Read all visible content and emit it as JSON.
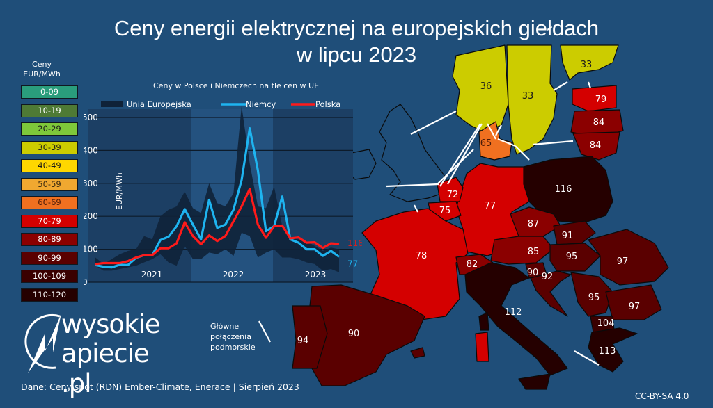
{
  "header": {
    "title_line1": "Ceny energii elektrycznej na europejskich giełdach",
    "title_line2": "w lipcu 2023"
  },
  "legend": {
    "title_line1": "Ceny",
    "title_line2": "EUR/MWh",
    "items": [
      {
        "label": "0-09",
        "color": "#2a9d7c",
        "text": "#ffffff"
      },
      {
        "label": "10-19",
        "color": "#4e7a35",
        "text": "#ffffff"
      },
      {
        "label": "20-29",
        "color": "#7ec83a",
        "text": "#1a1a1a"
      },
      {
        "label": "30-39",
        "color": "#cccc00",
        "text": "#1a1a1a"
      },
      {
        "label": "40-49",
        "color": "#ffd700",
        "text": "#1a1a1a"
      },
      {
        "label": "50-59",
        "color": "#f0a830",
        "text": "#3a2a10"
      },
      {
        "label": "60-69",
        "color": "#f07020",
        "text": "#4a1a08"
      },
      {
        "label": "70-79",
        "color": "#d40000",
        "text": "#ffffff"
      },
      {
        "label": "80-89",
        "color": "#8b0000",
        "text": "#ffffff"
      },
      {
        "label": "90-99",
        "color": "#5a0000",
        "text": "#ffffff"
      },
      {
        "label": "100-109",
        "color": "#3a0000",
        "text": "#ffffff"
      },
      {
        "label": "110-120",
        "color": "#250000",
        "text": "#ffffff"
      }
    ]
  },
  "chart_data": {
    "type": "line",
    "title": "Ceny w Polsce i Niemczech na tle cen w UE",
    "ylabel": "EUR/MWh",
    "xlabel": "",
    "ylim": [
      0,
      500
    ],
    "yticks": [
      0,
      100,
      200,
      300,
      400,
      500
    ],
    "year_labels": [
      "2021",
      "2022",
      "2023"
    ],
    "grid": true,
    "legend_position": "top",
    "x": [
      "2021-01",
      "2021-02",
      "2021-03",
      "2021-04",
      "2021-05",
      "2021-06",
      "2021-07",
      "2021-08",
      "2021-09",
      "2021-10",
      "2021-11",
      "2021-12",
      "2022-01",
      "2022-02",
      "2022-03",
      "2022-04",
      "2022-05",
      "2022-06",
      "2022-07",
      "2022-08",
      "2022-09",
      "2022-10",
      "2022-11",
      "2022-12",
      "2023-01",
      "2023-02",
      "2023-03",
      "2023-04",
      "2023-05",
      "2023-06",
      "2023-07"
    ],
    "series": [
      {
        "name": "Unia Europejska",
        "type": "band",
        "color": "#0f2238",
        "min": [
          50,
          35,
          35,
          40,
          45,
          50,
          60,
          70,
          85,
          60,
          50,
          110,
          70,
          70,
          90,
          85,
          100,
          80,
          150,
          140,
          75,
          90,
          100,
          75,
          75,
          70,
          60,
          55,
          35,
          40,
          30
        ],
        "max": [
          75,
          55,
          70,
          85,
          95,
          100,
          140,
          130,
          200,
          220,
          230,
          275,
          225,
          210,
          300,
          240,
          230,
          270,
          535,
          360,
          230,
          225,
          290,
          170,
          135,
          130,
          125,
          110,
          95,
          105,
          100
        ]
      },
      {
        "name": "Niemcy",
        "color": "#1eb4f0",
        "values": [
          52,
          47,
          45,
          53,
          52,
          74,
          82,
          82,
          128,
          138,
          170,
          222,
          175,
          130,
          250,
          165,
          175,
          220,
          310,
          467,
          340,
          155,
          170,
          260,
          130,
          120,
          100,
          100,
          80,
          95,
          77
        ]
      },
      {
        "name": "Polska",
        "color": "#ff1a1a",
        "values": [
          55,
          58,
          58,
          58,
          64,
          75,
          82,
          82,
          103,
          103,
          118,
          182,
          140,
          115,
          142,
          125,
          140,
          185,
          230,
          283,
          175,
          135,
          170,
          172,
          133,
          136,
          120,
          121,
          104,
          118,
          116
        ]
      }
    ],
    "end_labels": [
      {
        "series": "Polska",
        "value": "116",
        "color": "#d42020"
      },
      {
        "series": "Niemcy",
        "value": "77",
        "color": "#1eb4f0"
      }
    ]
  },
  "map": {
    "countries": [
      {
        "name": "Norwegia",
        "value": "36"
      },
      {
        "name": "Szwecja",
        "value": "33"
      },
      {
        "name": "Finlandia",
        "value": "33"
      },
      {
        "name": "Estonia",
        "value": "79"
      },
      {
        "name": "Łotwa",
        "value": "84"
      },
      {
        "name": "Litwa",
        "value": "84"
      },
      {
        "name": "Dania",
        "value": "65"
      },
      {
        "name": "Polska",
        "value": "116"
      },
      {
        "name": "Holandia",
        "value": "72"
      },
      {
        "name": "Belgia",
        "value": "75"
      },
      {
        "name": "Niemcy",
        "value": "77"
      },
      {
        "name": "Francja",
        "value": "78"
      },
      {
        "name": "Czechy",
        "value": "87"
      },
      {
        "name": "Słowacja",
        "value": "91"
      },
      {
        "name": "Austria",
        "value": "85"
      },
      {
        "name": "Węgry",
        "value": "95"
      },
      {
        "name": "Rumunia",
        "value": "97"
      },
      {
        "name": "Szwajcaria",
        "value": "82"
      },
      {
        "name": "Słowenia",
        "value": "90"
      },
      {
        "name": "Chorwacja",
        "value": "92"
      },
      {
        "name": "Serbia",
        "value": "95"
      },
      {
        "name": "Bułgaria",
        "value": "97"
      },
      {
        "name": "Macedonia Płn.",
        "value": "104"
      },
      {
        "name": "Grecja",
        "value": "113"
      },
      {
        "name": "Włochy",
        "value": "112"
      },
      {
        "name": "Hiszpania",
        "value": "90"
      },
      {
        "name": "Portugalia",
        "value": "94"
      }
    ],
    "cable_note": [
      "Główne",
      "połączenia",
      "podmorskie"
    ]
  },
  "logo": {
    "line1": "wysokie",
    "line2": "apiecie .pl"
  },
  "footer": {
    "source": "Dane: Ceny spot (RDN) Ember-Climate, Enerace |  Sierpień 2023",
    "license": "CC-BY-SA 4.0"
  }
}
